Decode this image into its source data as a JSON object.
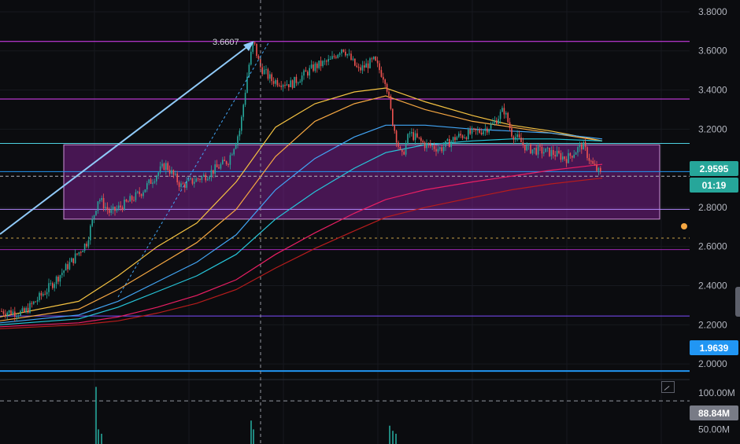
{
  "chart_data": {
    "type": "candlestick",
    "price_axis": {
      "ticks": [
        "3.8000",
        "3.6000",
        "3.4000",
        "3.2000",
        "2.8000",
        "2.6000",
        "2.4000",
        "2.2000",
        "2.0000"
      ],
      "ylim": [
        1.92,
        3.86
      ]
    },
    "volume_axis": {
      "ticks": [
        "100.00M",
        "50.00M"
      ],
      "ylim": [
        30,
        118
      ]
    },
    "current_price": {
      "label": "2.9595",
      "value": 2.9595,
      "color": "#26a69a"
    },
    "countdown": {
      "label": "01:19"
    },
    "support_level": {
      "label": "1.9639",
      "value": 1.9639,
      "color": "#2196f3"
    },
    "volume_level": {
      "label": "88.84M",
      "value": 88.84,
      "color": "#787b86"
    },
    "peak_annotation": {
      "label": "3.6607",
      "value": 3.6607
    },
    "horizontal_lines": [
      {
        "value": 3.648,
        "color": "#e040fb"
      },
      {
        "value": 3.354,
        "color": "#e040fb"
      },
      {
        "value": 3.127,
        "color": "#4dd0e1"
      },
      {
        "value": 2.983,
        "color": "#2196f3"
      },
      {
        "value": 2.79,
        "color": "#b388ff"
      },
      {
        "value": 2.584,
        "color": "#9c27b0"
      },
      {
        "value": 2.245,
        "color": "#7c4dff"
      }
    ],
    "zone": {
      "low": 2.74,
      "high": 3.12,
      "color": "#9c27b0"
    },
    "volume_ma_dashed": 88.84,
    "dotted_level": 2.643,
    "moving_averages": [
      {
        "color": "#f5c342",
        "points": [
          [
            0,
            2.24
          ],
          [
            100,
            2.32
          ],
          [
            150,
            2.45
          ],
          [
            200,
            2.6
          ],
          [
            250,
            2.72
          ],
          [
            300,
            2.93
          ],
          [
            350,
            3.21
          ],
          [
            400,
            3.33
          ],
          [
            450,
            3.39
          ],
          [
            490,
            3.41
          ],
          [
            540,
            3.34
          ],
          [
            600,
            3.27
          ],
          [
            650,
            3.22
          ],
          [
            700,
            3.19
          ],
          [
            765,
            3.14
          ]
        ]
      },
      {
        "color": "#f5a742",
        "points": [
          [
            0,
            2.22
          ],
          [
            100,
            2.28
          ],
          [
            150,
            2.38
          ],
          [
            200,
            2.5
          ],
          [
            250,
            2.62
          ],
          [
            300,
            2.79
          ],
          [
            350,
            3.06
          ],
          [
            400,
            3.24
          ],
          [
            450,
            3.33
          ],
          [
            490,
            3.37
          ],
          [
            540,
            3.3
          ],
          [
            600,
            3.24
          ],
          [
            650,
            3.21
          ],
          [
            700,
            3.18
          ],
          [
            765,
            3.14
          ]
        ]
      },
      {
        "color": "#42a5f5",
        "points": [
          [
            0,
            2.21
          ],
          [
            100,
            2.25
          ],
          [
            150,
            2.32
          ],
          [
            200,
            2.42
          ],
          [
            250,
            2.52
          ],
          [
            300,
            2.66
          ],
          [
            350,
            2.89
          ],
          [
            400,
            3.05
          ],
          [
            450,
            3.16
          ],
          [
            490,
            3.22
          ],
          [
            540,
            3.22
          ],
          [
            600,
            3.2
          ],
          [
            650,
            3.19
          ],
          [
            700,
            3.18
          ],
          [
            765,
            3.15
          ]
        ]
      },
      {
        "color": "#26c6da",
        "points": [
          [
            0,
            2.2
          ],
          [
            100,
            2.23
          ],
          [
            150,
            2.29
          ],
          [
            200,
            2.37
          ],
          [
            250,
            2.45
          ],
          [
            300,
            2.56
          ],
          [
            350,
            2.74
          ],
          [
            400,
            2.88
          ],
          [
            450,
            3.0
          ],
          [
            490,
            3.08
          ],
          [
            540,
            3.12
          ],
          [
            600,
            3.14
          ],
          [
            650,
            3.15
          ],
          [
            700,
            3.15
          ],
          [
            765,
            3.14
          ]
        ]
      },
      {
        "color": "#e91e63",
        "points": [
          [
            0,
            2.19
          ],
          [
            100,
            2.21
          ],
          [
            150,
            2.24
          ],
          [
            200,
            2.29
          ],
          [
            250,
            2.35
          ],
          [
            300,
            2.43
          ],
          [
            350,
            2.56
          ],
          [
            400,
            2.67
          ],
          [
            450,
            2.77
          ],
          [
            490,
            2.84
          ],
          [
            540,
            2.89
          ],
          [
            600,
            2.93
          ],
          [
            650,
            2.96
          ],
          [
            700,
            2.99
          ],
          [
            765,
            3.02
          ]
        ]
      },
      {
        "color": "#b71c1c",
        "points": [
          [
            0,
            2.18
          ],
          [
            100,
            2.2
          ],
          [
            150,
            2.22
          ],
          [
            200,
            2.26
          ],
          [
            250,
            2.31
          ],
          [
            300,
            2.38
          ],
          [
            350,
            2.49
          ],
          [
            400,
            2.59
          ],
          [
            450,
            2.68
          ],
          [
            490,
            2.75
          ],
          [
            540,
            2.8
          ],
          [
            600,
            2.85
          ],
          [
            650,
            2.89
          ],
          [
            700,
            2.92
          ],
          [
            765,
            2.95
          ]
        ]
      }
    ],
    "price_path": [
      [
        0,
        2.27
      ],
      [
        30,
        2.26
      ],
      [
        60,
        2.38
      ],
      [
        90,
        2.52
      ],
      [
        110,
        2.62
      ],
      [
        125,
        2.85
      ],
      [
        140,
        2.77
      ],
      [
        160,
        2.82
      ],
      [
        180,
        2.88
      ],
      [
        210,
        3.02
      ],
      [
        230,
        2.91
      ],
      [
        260,
        2.96
      ],
      [
        290,
        3.04
      ],
      [
        305,
        3.2
      ],
      [
        315,
        3.5
      ],
      [
        322,
        3.65
      ],
      [
        330,
        3.52
      ],
      [
        345,
        3.45
      ],
      [
        370,
        3.43
      ],
      [
        400,
        3.52
      ],
      [
        420,
        3.55
      ],
      [
        435,
        3.62
      ],
      [
        455,
        3.5
      ],
      [
        475,
        3.55
      ],
      [
        490,
        3.45
      ],
      [
        498,
        3.25
      ],
      [
        510,
        3.05
      ],
      [
        520,
        3.18
      ],
      [
        540,
        3.12
      ],
      [
        560,
        3.1
      ],
      [
        580,
        3.16
      ],
      [
        610,
        3.19
      ],
      [
        625,
        3.22
      ],
      [
        640,
        3.3
      ],
      [
        650,
        3.18
      ],
      [
        670,
        3.1
      ],
      [
        700,
        3.08
      ],
      [
        720,
        3.05
      ],
      [
        740,
        3.12
      ],
      [
        752,
        3.02
      ],
      [
        765,
        2.96
      ]
    ],
    "volume_spikes": [
      [
        121,
        108
      ],
      [
        124,
        50
      ],
      [
        128,
        44
      ],
      [
        318,
        62
      ],
      [
        321,
        50
      ],
      [
        494,
        55
      ],
      [
        498,
        48
      ],
      [
        502,
        44
      ]
    ]
  }
}
